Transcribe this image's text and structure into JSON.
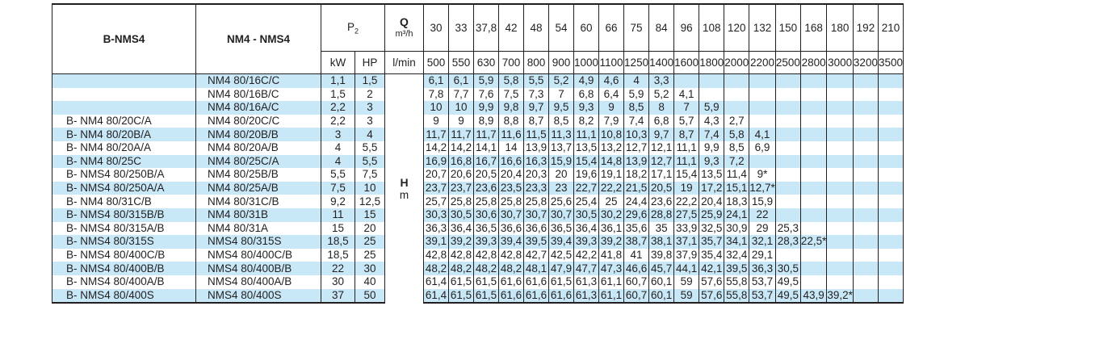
{
  "headers": {
    "col1": "B-NMS4",
    "col2": "NM4 - NMS4",
    "p2": "P",
    "p2_sub": "2",
    "kw": "kW",
    "hp": "HP",
    "q_label": "Q",
    "q_unit": "m³/h",
    "lmin": "l/min",
    "h_label": "H",
    "h_unit": "m"
  },
  "flow_m3h": [
    "30",
    "33",
    "37,8",
    "42",
    "48",
    "54",
    "60",
    "66",
    "75",
    "84",
    "96",
    "108",
    "120",
    "132",
    "150",
    "168",
    "180",
    "192",
    "210"
  ],
  "flow_lmin": [
    "500",
    "550",
    "630",
    "700",
    "800",
    "900",
    "1000",
    "1100",
    "1250",
    "1400",
    "1600",
    "1800",
    "2000",
    "2200",
    "2500",
    "2800",
    "3000",
    "3200",
    "3500"
  ],
  "rows": [
    {
      "b": "",
      "nm": "NM4 80/16C/C",
      "kw": "1,1",
      "hp": "1,5",
      "h": [
        "6,1",
        "6,1",
        "5,9",
        "5,8",
        "5,5",
        "5,2",
        "4,9",
        "4,6",
        "4",
        "3,3",
        "",
        "",
        "",
        "",
        "",
        "",
        "",
        "",
        ""
      ]
    },
    {
      "b": "",
      "nm": "NM4 80/16B/C",
      "kw": "1,5",
      "hp": "2",
      "h": [
        "7,8",
        "7,7",
        "7,6",
        "7,5",
        "7,3",
        "7",
        "6,8",
        "6,4",
        "5,9",
        "5,2",
        "4,1",
        "",
        "",
        "",
        "",
        "",
        "",
        "",
        ""
      ]
    },
    {
      "b": "",
      "nm": "NM4 80/16A/C",
      "kw": "2,2",
      "hp": "3",
      "h": [
        "10",
        "10",
        "9,9",
        "9,8",
        "9,7",
        "9,5",
        "9,3",
        "9",
        "8,5",
        "8",
        "7",
        "5,9",
        "",
        "",
        "",
        "",
        "",
        "",
        ""
      ]
    },
    {
      "b": "B- NM4 80/20C/A",
      "nm": "NM4 80/20C/C",
      "kw": "2,2",
      "hp": "3",
      "h": [
        "9",
        "9",
        "8,9",
        "8,8",
        "8,7",
        "8,5",
        "8,2",
        "7,9",
        "7,4",
        "6,8",
        "5,7",
        "4,3",
        "2,7",
        "",
        "",
        "",
        "",
        "",
        ""
      ]
    },
    {
      "b": "B- NM4 80/20B/A",
      "nm": "NM4 80/20B/B",
      "kw": "3",
      "hp": "4",
      "h": [
        "11,7",
        "11,7",
        "11,7",
        "11,6",
        "11,5",
        "11,3",
        "11,1",
        "10,8",
        "10,3",
        "9,7",
        "8,7",
        "7,4",
        "5,8",
        "4,1",
        "",
        "",
        "",
        "",
        ""
      ]
    },
    {
      "b": "B- NM4 80/20A/A",
      "nm": "NM4 80/20A/B",
      "kw": "4",
      "hp": "5,5",
      "h": [
        "14,2",
        "14,2",
        "14,1",
        "14",
        "13,9",
        "13,7",
        "13,5",
        "13,2",
        "12,7",
        "12,1",
        "11,1",
        "9,9",
        "8,5",
        "6,9",
        "",
        "",
        "",
        "",
        ""
      ]
    },
    {
      "b": "B- NM4 80/25C",
      "nm": "NM4 80/25C/A",
      "kw": "4",
      "hp": "5,5",
      "h": [
        "16,9",
        "16,8",
        "16,7",
        "16,6",
        "16,3",
        "15,9",
        "15,4",
        "14,8",
        "13,9",
        "12,7",
        "11,1",
        "9,3",
        "7,2",
        "",
        "",
        "",
        "",
        "",
        ""
      ]
    },
    {
      "b": "B- NMS4 80/250B/A",
      "nm": "NM4 80/25B/B",
      "kw": "5,5",
      "hp": "7,5",
      "h": [
        "20,7",
        "20,6",
        "20,5",
        "20,4",
        "20,3",
        "20",
        "19,6",
        "19,1",
        "18,2",
        "17,1",
        "15,4",
        "13,5",
        "11,4",
        "9*",
        "",
        "",
        "",
        "",
        ""
      ]
    },
    {
      "b": "B- NMS4 80/250A/A",
      "nm": "NM4 80/25A/B",
      "kw": "7,5",
      "hp": "10",
      "h": [
        "23,7",
        "23,7",
        "23,6",
        "23,5",
        "23,3",
        "23",
        "22,7",
        "22,2",
        "21,5",
        "20,5",
        "19",
        "17,2",
        "15,1",
        "12,7*",
        "",
        "",
        "",
        "",
        ""
      ]
    },
    {
      "b": "B- NM4 80/31C/B",
      "nm": "NM4 80/31C/B",
      "kw": "9,2",
      "hp": "12,5",
      "h": [
        "25,7",
        "25,8",
        "25,8",
        "25,8",
        "25,8",
        "25,6",
        "25,4",
        "25",
        "24,4",
        "23,6",
        "22,2",
        "20,4",
        "18,3",
        "15,9",
        "",
        "",
        "",
        "",
        ""
      ]
    },
    {
      "b": "B- NMS4 80/315B/B",
      "nm": "NM4 80/31B",
      "kw": "11",
      "hp": "15",
      "h": [
        "30,3",
        "30,5",
        "30,6",
        "30,7",
        "30,7",
        "30,7",
        "30,5",
        "30,2",
        "29,6",
        "28,8",
        "27,5",
        "25,9",
        "24,1",
        "22",
        "",
        "",
        "",
        "",
        ""
      ]
    },
    {
      "b": "B- NMS4 80/315A/B",
      "nm": "NM4 80/31A",
      "kw": "15",
      "hp": "20",
      "h": [
        "36,3",
        "36,4",
        "36,5",
        "36,6",
        "36,6",
        "36,5",
        "36,4",
        "36,1",
        "35,6",
        "35",
        "33,9",
        "32,5",
        "30,9",
        "29",
        "25,3",
        "",
        "",
        "",
        ""
      ]
    },
    {
      "b": "B- NMS4 80/315S",
      "nm": "NMS4 80/315S",
      "kw": "18,5",
      "hp": "25",
      "h": [
        "39,1",
        "39,2",
        "39,3",
        "39,4",
        "39,5",
        "39,4",
        "39,3",
        "39,2",
        "38,7",
        "38,1",
        "37,1",
        "35,7",
        "34,1",
        "32,1",
        "28,3",
        "22,5*",
        "",
        "",
        ""
      ]
    },
    {
      "b": "B- NMS4 80/400C/B",
      "nm": "NMS4 80/400C/B",
      "kw": "18,5",
      "hp": "25",
      "h": [
        "42,8",
        "42,8",
        "42,8",
        "42,8",
        "42,7",
        "42,5",
        "42,2",
        "41,8",
        "41",
        "39,8",
        "37,9",
        "35,4",
        "32,4",
        "29,1",
        "",
        "",
        "",
        "",
        ""
      ]
    },
    {
      "b": "B- NMS4 80/400B/B",
      "nm": "NMS4 80/400B/B",
      "kw": "22",
      "hp": "30",
      "h": [
        "48,2",
        "48,2",
        "48,2",
        "48,2",
        "48,1",
        "47,9",
        "47,7",
        "47,3",
        "46,6",
        "45,7",
        "44,1",
        "42,1",
        "39,5",
        "36,3",
        "30,5",
        "",
        "",
        "",
        ""
      ]
    },
    {
      "b": "B- NMS4 80/400A/B",
      "nm": "NMS4 80/400A/B",
      "kw": "30",
      "hp": "40",
      "h": [
        "61,4",
        "61,5",
        "61,5",
        "61,6",
        "61,6",
        "61,5",
        "61,3",
        "61,1",
        "60,7",
        "60,1",
        "59",
        "57,6",
        "55,8",
        "53,7",
        "49,5",
        "",
        "",
        "",
        ""
      ]
    },
    {
      "b": "B- NMS4 80/400S",
      "nm": "NMS4 80/400S",
      "kw": "37",
      "hp": "50",
      "h": [
        "61,4",
        "61,5",
        "61,5",
        "61,6",
        "61,6",
        "61,6",
        "61,3",
        "61,1",
        "60,7",
        "60,1",
        "59",
        "57,6",
        "55,8",
        "53,7",
        "49,5",
        "43,9",
        "39,2*",
        "",
        ""
      ]
    }
  ]
}
